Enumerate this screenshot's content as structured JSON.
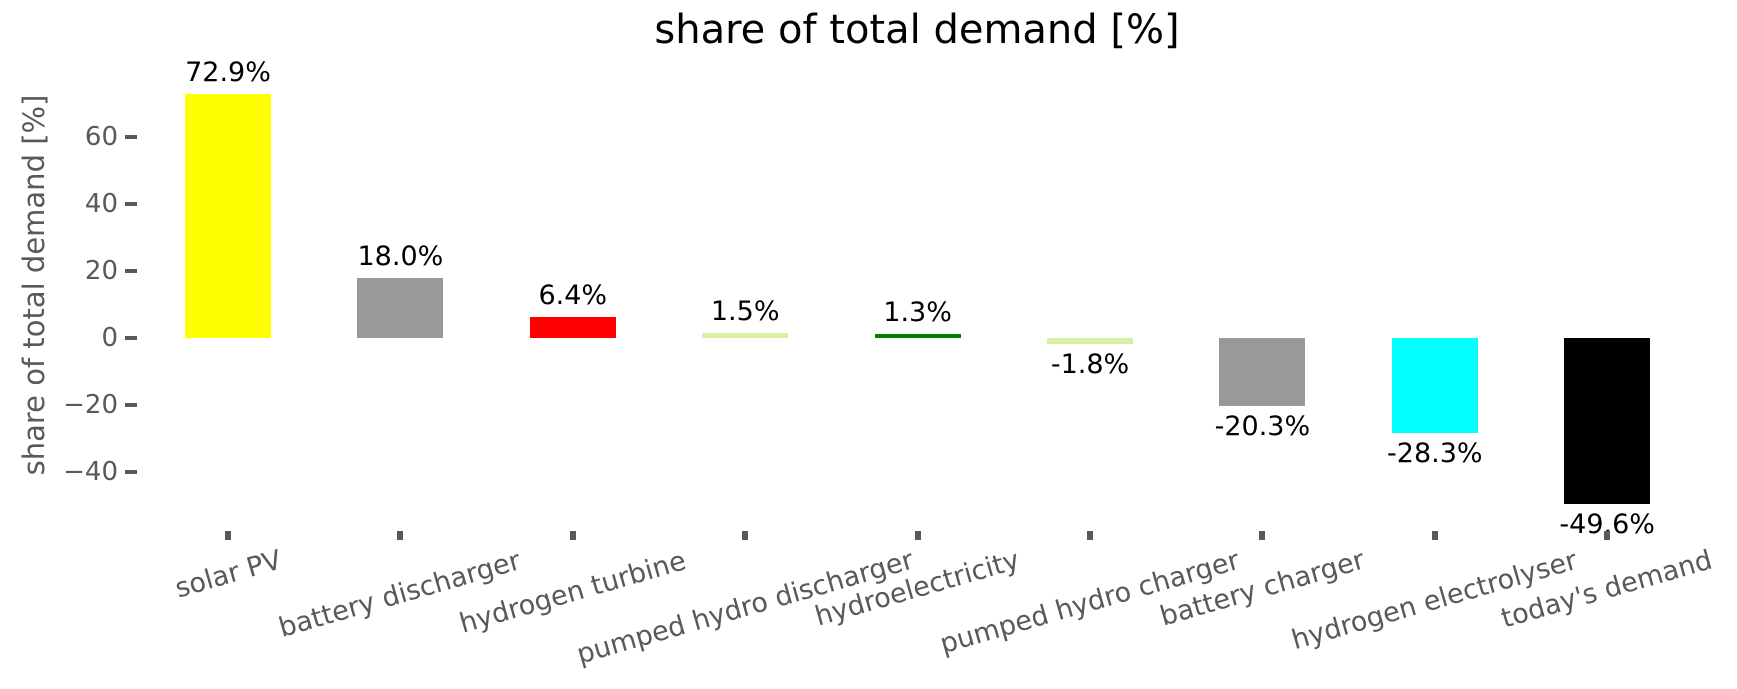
{
  "style": {
    "background": "#ffffff",
    "title_color": "#000000",
    "axis_text_color": "#595959",
    "value_label_color": "#000000"
  },
  "chart_data": {
    "type": "bar",
    "title": "share of total demand [%]",
    "ylabel": "share of total demand [%]",
    "xlabel": "",
    "grid": false,
    "legend": "none",
    "spines_visible": false,
    "ylim": [
      -56,
      79
    ],
    "x_label_rotation_deg": 16,
    "yticks": [
      {
        "value": 60,
        "label": "60"
      },
      {
        "value": 40,
        "label": "40"
      },
      {
        "value": 20,
        "label": "20"
      },
      {
        "value": 0,
        "label": "0"
      },
      {
        "value": -20,
        "label": "−20"
      },
      {
        "value": -40,
        "label": "−40"
      }
    ],
    "categories": [
      "solar PV",
      "battery discharger",
      "hydrogen turbine",
      "pumped hydro discharger",
      "hydroelectricity",
      "pumped hydro charger",
      "battery charger",
      "hydrogen electrolyser",
      "today's demand"
    ],
    "values": [
      72.9,
      18.0,
      6.4,
      1.5,
      1.3,
      -1.8,
      -20.3,
      -28.3,
      -49.6
    ],
    "bars": [
      {
        "category": "solar PV",
        "value": 72.9,
        "label": "72.9%",
        "color": "#ffff00"
      },
      {
        "category": "battery discharger",
        "value": 18.0,
        "label": "18.0%",
        "color": "#999999"
      },
      {
        "category": "hydrogen turbine",
        "value": 6.4,
        "label": "6.4%",
        "color": "#ff0000"
      },
      {
        "category": "pumped hydro discharger",
        "value": 1.5,
        "label": "1.5%",
        "color": "#d8f0a3"
      },
      {
        "category": "hydroelectricity",
        "value": 1.3,
        "label": "1.3%",
        "color": "#008000"
      },
      {
        "category": "pumped hydro charger",
        "value": -1.8,
        "label": "-1.8%",
        "color": "#d8f0a3"
      },
      {
        "category": "battery charger",
        "value": -20.3,
        "label": "-20.3%",
        "color": "#999999"
      },
      {
        "category": "hydrogen electrolyser",
        "value": -28.3,
        "label": "-28.3%",
        "color": "#00ffff"
      },
      {
        "category": "today's demand",
        "value": -49.6,
        "label": "-49.6%",
        "color": "#000000"
      }
    ]
  }
}
